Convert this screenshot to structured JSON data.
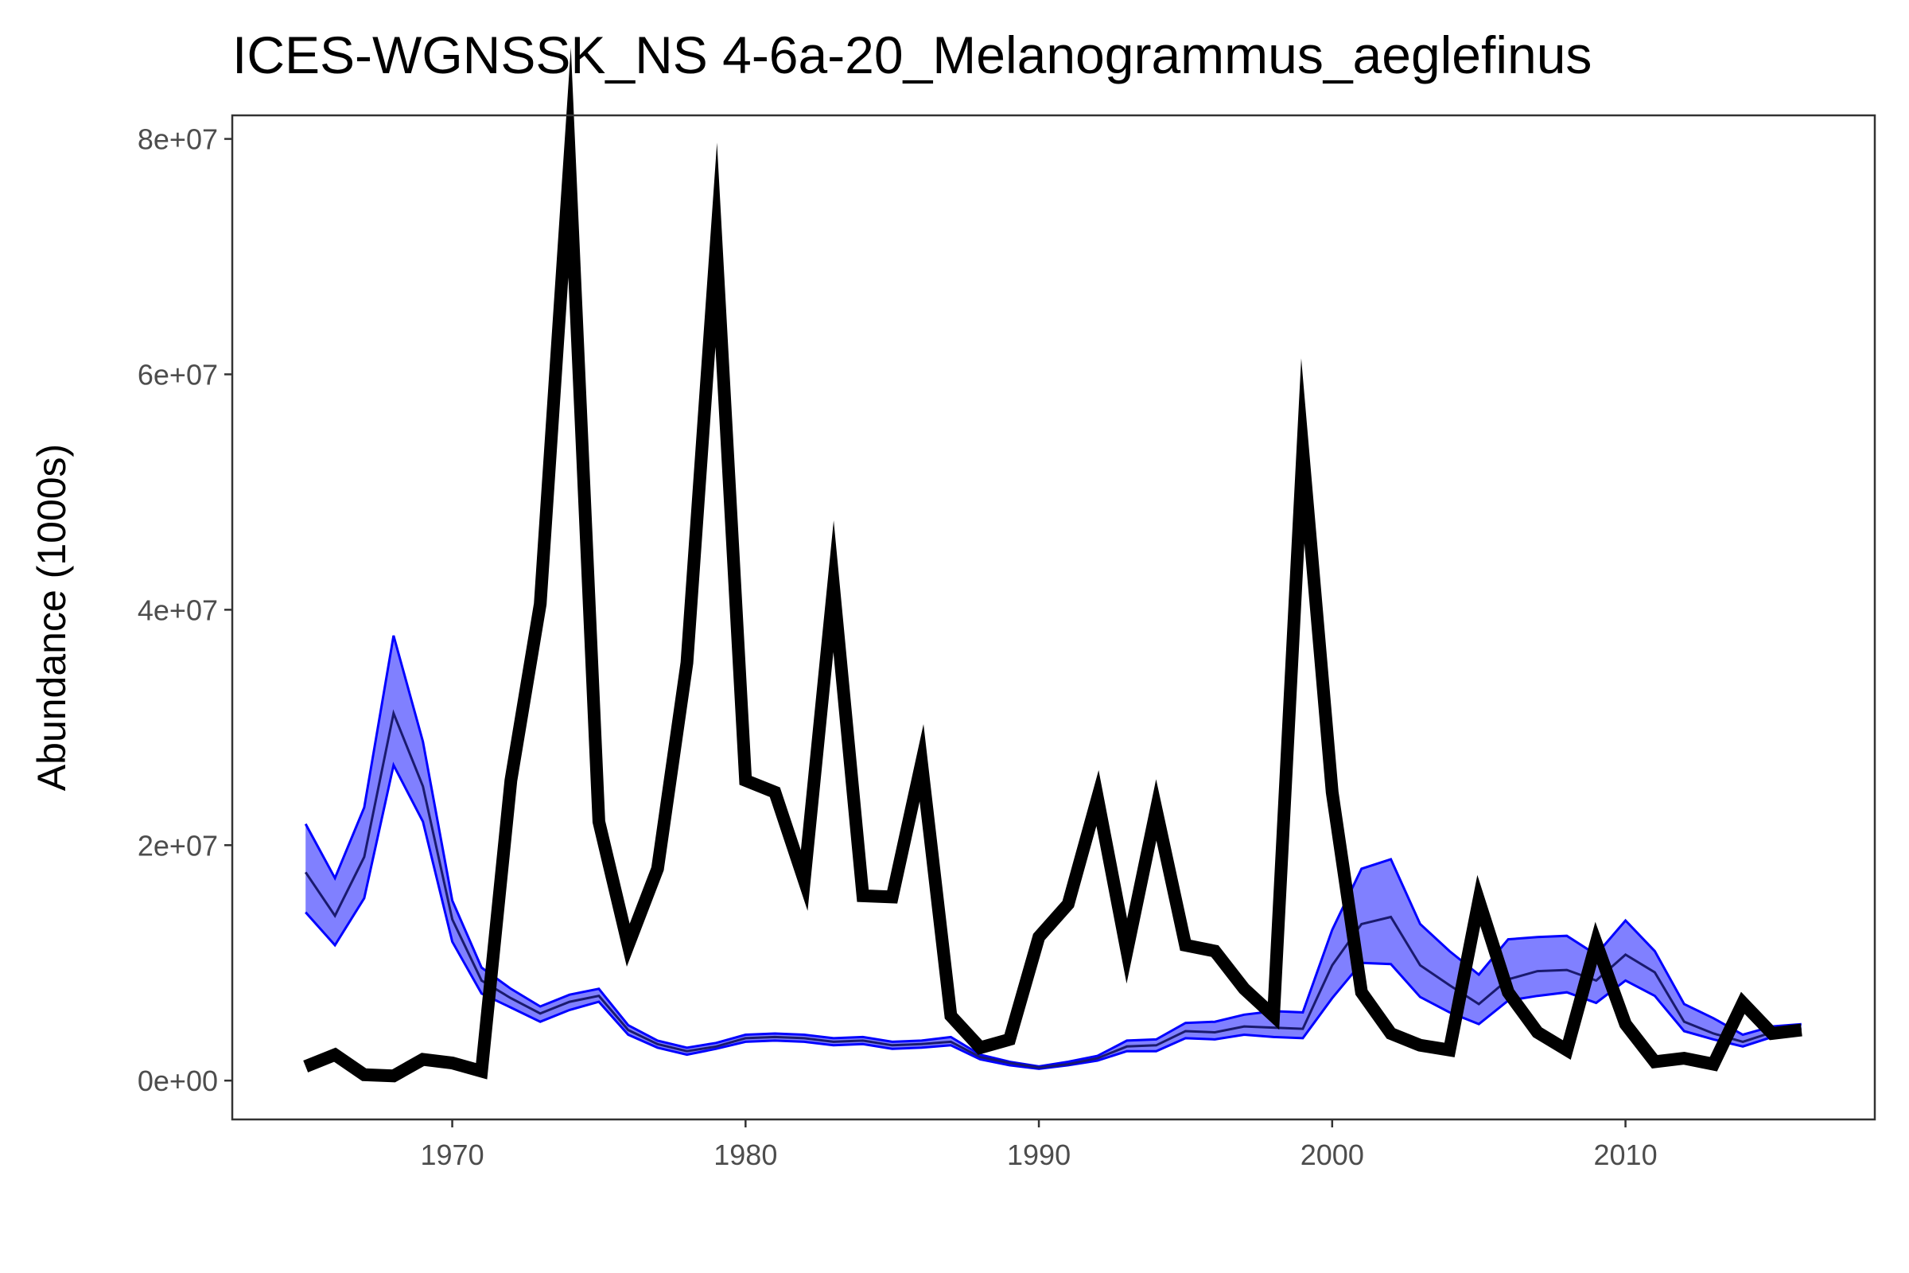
{
  "chart_data": {
    "type": "line",
    "title": "ICES-WGNSSK_NS  4-6a-20_Melanogrammus_aeglefinus",
    "xlabel": "",
    "ylabel": "Abundance (1000s)",
    "xlim": [
      1962.5,
      2018.5
    ],
    "ylim": [
      -3300000,
      82000000
    ],
    "x_ticks": [
      1970,
      1980,
      1990,
      2000,
      2010
    ],
    "x_tick_labels": [
      "1970",
      "1980",
      "1990",
      "2000",
      "2010"
    ],
    "y_ticks": [
      0,
      20000000,
      40000000,
      60000000,
      80000000
    ],
    "y_tick_labels": [
      "0e+00",
      "2e+07",
      "4e+07",
      "6e+07",
      "8e+07"
    ],
    "grid": false,
    "colors": {
      "observed": "#000000",
      "band_fill": "#8080ff",
      "band_edge": "#0000ff",
      "model_median": "#1a1a6e",
      "panel_border": "#333333"
    },
    "x": [
      1965,
      1966,
      1967,
      1968,
      1969,
      1970,
      1971,
      1972,
      1973,
      1974,
      1975,
      1976,
      1977,
      1978,
      1979,
      1980,
      1981,
      1982,
      1983,
      1984,
      1985,
      1986,
      1987,
      1988,
      1989,
      1990,
      1991,
      1992,
      1993,
      1994,
      1995,
      1996,
      1997,
      1998,
      1999,
      2000,
      2001,
      2002,
      2003,
      2004,
      2005,
      2006,
      2007,
      2008,
      2009,
      2010,
      2011,
      2012,
      2013,
      2014,
      2015,
      2016
    ],
    "series": [
      {
        "role": "observed",
        "values": [
          1200000,
          2200000,
          500000,
          400000,
          1800000,
          1500000,
          800000,
          25500000,
          40500000,
          78000000,
          22000000,
          11500000,
          18000000,
          35500000,
          71000000,
          25500000,
          24500000,
          17000000,
          42000000,
          15700000,
          15600000,
          27000000,
          5500000,
          2800000,
          3500000,
          12200000,
          15000000,
          24000000,
          11000000,
          23000000,
          11500000,
          11000000,
          7800000,
          5500000,
          53500000,
          24500000,
          7500000,
          4000000,
          3000000,
          2600000,
          15300000,
          7500000,
          4100000,
          2600000,
          11700000,
          4800000,
          1600000,
          1900000,
          1400000,
          6600000,
          4000000,
          4300000
        ]
      },
      {
        "role": "model-median",
        "values": [
          17700000,
          14000000,
          19000000,
          31200000,
          25000000,
          13700000,
          8500000,
          7000000,
          5700000,
          6700000,
          7200000,
          4300000,
          3100000,
          2500000,
          2900000,
          3600000,
          3700000,
          3600000,
          3300000,
          3400000,
          3000000,
          3100000,
          3300000,
          2000000,
          1500000,
          1100000,
          1400000,
          1900000,
          2900000,
          3000000,
          4200000,
          4100000,
          4600000,
          4500000,
          4400000,
          9800000,
          13300000,
          13900000,
          9800000,
          8100000,
          6500000,
          8600000,
          9300000,
          9400000,
          8500000,
          10700000,
          9200000,
          5000000,
          4000000,
          3300000,
          4100000,
          4400000
        ]
      },
      {
        "role": "model-lower",
        "values": [
          14300000,
          11500000,
          15500000,
          26800000,
          22000000,
          11800000,
          7400000,
          6200000,
          5000000,
          6000000,
          6700000,
          3900000,
          2800000,
          2200000,
          2700000,
          3300000,
          3400000,
          3300000,
          3000000,
          3100000,
          2700000,
          2800000,
          3000000,
          1800000,
          1300000,
          1000000,
          1300000,
          1700000,
          2500000,
          2500000,
          3600000,
          3500000,
          3900000,
          3700000,
          3600000,
          7000000,
          10000000,
          9900000,
          7100000,
          5800000,
          4800000,
          6800000,
          7200000,
          7500000,
          6600000,
          8500000,
          7200000,
          4200000,
          3500000,
          2900000,
          3700000,
          4000000
        ]
      },
      {
        "role": "model-upper",
        "values": [
          21800000,
          17200000,
          23200000,
          37800000,
          28800000,
          15300000,
          9600000,
          7800000,
          6300000,
          7300000,
          7800000,
          4700000,
          3400000,
          2800000,
          3200000,
          3900000,
          4000000,
          3900000,
          3600000,
          3700000,
          3300000,
          3400000,
          3700000,
          2200000,
          1600000,
          1200000,
          1600000,
          2100000,
          3400000,
          3500000,
          4900000,
          5000000,
          5600000,
          5900000,
          5800000,
          12800000,
          18000000,
          18800000,
          13300000,
          11000000,
          9000000,
          12000000,
          12200000,
          12300000,
          10700000,
          13600000,
          11000000,
          6500000,
          5300000,
          3900000,
          4600000,
          4800000
        ]
      }
    ]
  }
}
